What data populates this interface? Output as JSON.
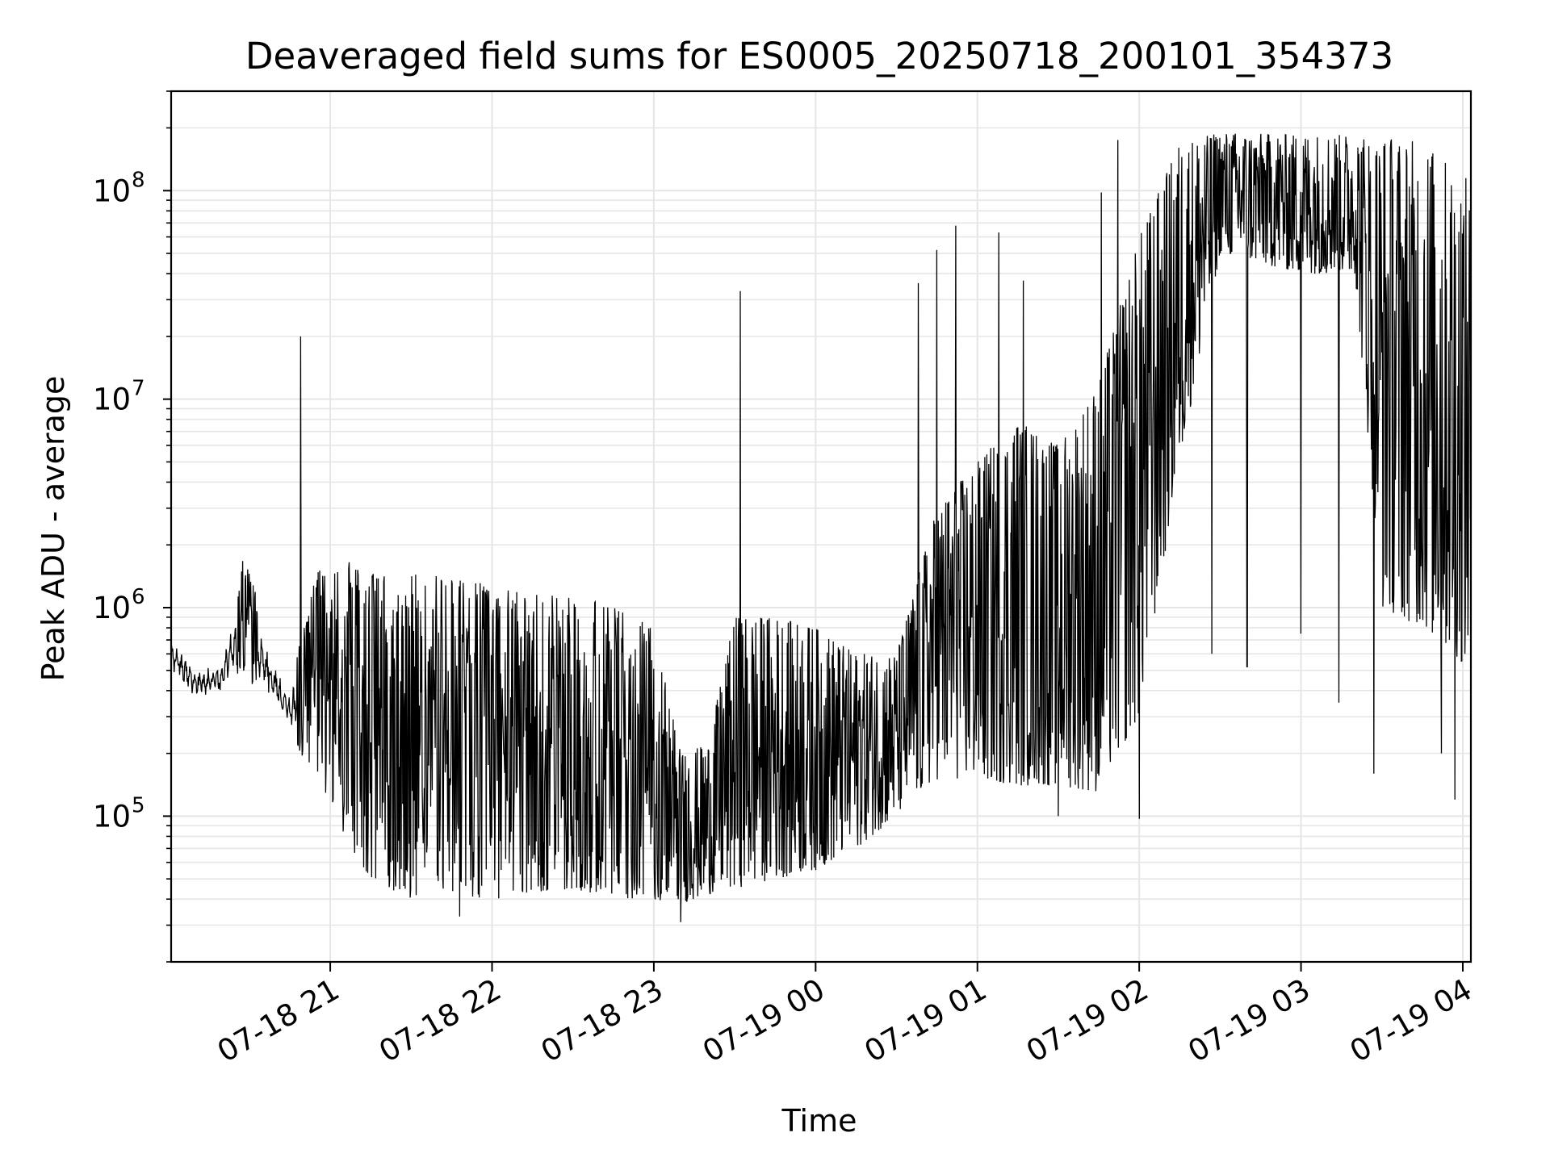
{
  "chart_data": {
    "type": "line",
    "title": "Deaveraged field sums for ES0005_20250718_200101_354373",
    "xlabel": "Time",
    "ylabel": "Peak ADU - average",
    "y_scale": "log",
    "ylim": [
      20000,
      300000000
    ],
    "xlim": [
      "2025-07-18 20:01",
      "2025-07-19 04:03"
    ],
    "grid": true,
    "line_color": "#000000",
    "grid_color": "#e6e6e6",
    "x_ticks": [
      {
        "t": "2025-07-18 21:00",
        "label": "07-18 21"
      },
      {
        "t": "2025-07-18 22:00",
        "label": "07-18 22"
      },
      {
        "t": "2025-07-18 23:00",
        "label": "07-18 23"
      },
      {
        "t": "2025-07-19 00:00",
        "label": "07-19 00"
      },
      {
        "t": "2025-07-19 01:00",
        "label": "07-19 01"
      },
      {
        "t": "2025-07-19 02:00",
        "label": "07-19 02"
      },
      {
        "t": "2025-07-19 03:00",
        "label": "07-19 03"
      },
      {
        "t": "2025-07-19 04:00",
        "label": "07-19 04"
      }
    ],
    "y_ticks": [
      {
        "value": 100000,
        "base": "10",
        "exp": "5"
      },
      {
        "value": 1000000,
        "base": "10",
        "exp": "6"
      },
      {
        "value": 10000000,
        "base": "10",
        "exp": "7"
      },
      {
        "value": 100000000,
        "base": "10",
        "exp": "8"
      }
    ],
    "series": [
      {
        "envelope": [
          {
            "t": "2025-07-18 20:01",
            "low": 450000,
            "high": 800000
          },
          {
            "t": "2025-07-18 20:10",
            "low": 330000,
            "high": 550000
          },
          {
            "t": "2025-07-18 20:20",
            "low": 340000,
            "high": 600000
          },
          {
            "t": "2025-07-18 20:28",
            "low": 500000,
            "high": 1800000
          },
          {
            "t": "2025-07-18 20:35",
            "low": 350000,
            "high": 900000
          },
          {
            "t": "2025-07-18 20:45",
            "low": 240000,
            "high": 420000
          },
          {
            "t": "2025-07-18 20:55",
            "low": 150000,
            "high": 1500000
          },
          {
            "t": "2025-07-18 21:05",
            "low": 80000,
            "high": 1600000
          },
          {
            "t": "2025-07-18 21:15",
            "low": 50000,
            "high": 1450000
          },
          {
            "t": "2025-07-18 21:30",
            "low": 40000,
            "high": 1450000
          },
          {
            "t": "2025-07-18 21:45",
            "low": 42000,
            "high": 1400000
          },
          {
            "t": "2025-07-18 22:00",
            "low": 40000,
            "high": 1300000
          },
          {
            "t": "2025-07-18 22:15",
            "low": 42000,
            "high": 1150000
          },
          {
            "t": "2025-07-18 22:30",
            "low": 45000,
            "high": 1200000
          },
          {
            "t": "2025-07-18 22:45",
            "low": 40000,
            "high": 1000000
          },
          {
            "t": "2025-07-18 23:00",
            "low": 40000,
            "high": 800000
          },
          {
            "t": "2025-07-18 23:10",
            "low": 38000,
            "high": 200000
          },
          {
            "t": "2025-07-18 23:20",
            "low": 42000,
            "high": 220000
          },
          {
            "t": "2025-07-18 23:30",
            "low": 45000,
            "high": 900000
          },
          {
            "t": "2025-07-18 23:45",
            "low": 50000,
            "high": 900000
          },
          {
            "t": "2025-07-19 00:00",
            "low": 55000,
            "high": 800000
          },
          {
            "t": "2025-07-19 00:15",
            "low": 70000,
            "high": 600000
          },
          {
            "t": "2025-07-19 00:30",
            "low": 100000,
            "high": 600000
          },
          {
            "t": "2025-07-19 00:45",
            "low": 150000,
            "high": 3000000
          },
          {
            "t": "2025-07-19 01:00",
            "low": 150000,
            "high": 5000000
          },
          {
            "t": "2025-07-19 01:15",
            "low": 140000,
            "high": 8000000
          },
          {
            "t": "2025-07-19 01:30",
            "low": 140000,
            "high": 6000000
          },
          {
            "t": "2025-07-19 01:45",
            "low": 130000,
            "high": 12000000
          },
          {
            "t": "2025-07-19 02:00",
            "low": 300000,
            "high": 60000000
          },
          {
            "t": "2025-07-19 02:15",
            "low": 5000000,
            "high": 170000000
          },
          {
            "t": "2025-07-19 02:30",
            "low": 50000000,
            "high": 190000000
          },
          {
            "t": "2025-07-19 03:00",
            "low": 40000000,
            "high": 185000000
          },
          {
            "t": "2025-07-19 03:20",
            "low": 40000000,
            "high": 185000000
          },
          {
            "t": "2025-07-19 03:30",
            "low": 1000000,
            "high": 185000000
          },
          {
            "t": "2025-07-19 03:45",
            "low": 800000,
            "high": 170000000
          },
          {
            "t": "2025-07-19 04:03",
            "low": 500000,
            "high": 110000000
          }
        ],
        "spikes": [
          {
            "t": "2025-07-18 20:49",
            "value": 20000000
          },
          {
            "t": "2025-07-18 21:07",
            "value": 1650000
          },
          {
            "t": "2025-07-18 23:32",
            "value": 33000000
          },
          {
            "t": "2025-07-19 00:38",
            "value": 36000000
          },
          {
            "t": "2025-07-19 00:45",
            "value": 52000000
          },
          {
            "t": "2025-07-19 00:52",
            "value": 68000000
          },
          {
            "t": "2025-07-19 01:08",
            "value": 63000000
          },
          {
            "t": "2025-07-19 01:17",
            "value": 37000000
          },
          {
            "t": "2025-07-19 01:46",
            "value": 98000000
          },
          {
            "t": "2025-07-19 01:52",
            "value": 175000000
          }
        ],
        "dips": [
          {
            "t": "2025-07-18 21:48",
            "value": 33000
          },
          {
            "t": "2025-07-18 23:10",
            "value": 31000
          },
          {
            "t": "2025-07-19 01:30",
            "value": 100000
          },
          {
            "t": "2025-07-19 02:00",
            "value": 97000
          },
          {
            "t": "2025-07-19 02:27",
            "value": 600000
          },
          {
            "t": "2025-07-19 02:40",
            "value": 520000
          },
          {
            "t": "2025-07-19 03:00",
            "value": 750000
          },
          {
            "t": "2025-07-19 03:14",
            "value": 350000
          },
          {
            "t": "2025-07-19 03:27",
            "value": 160000
          },
          {
            "t": "2025-07-19 03:52",
            "value": 200000
          },
          {
            "t": "2025-07-19 03:57",
            "value": 120000
          }
        ]
      }
    ]
  }
}
